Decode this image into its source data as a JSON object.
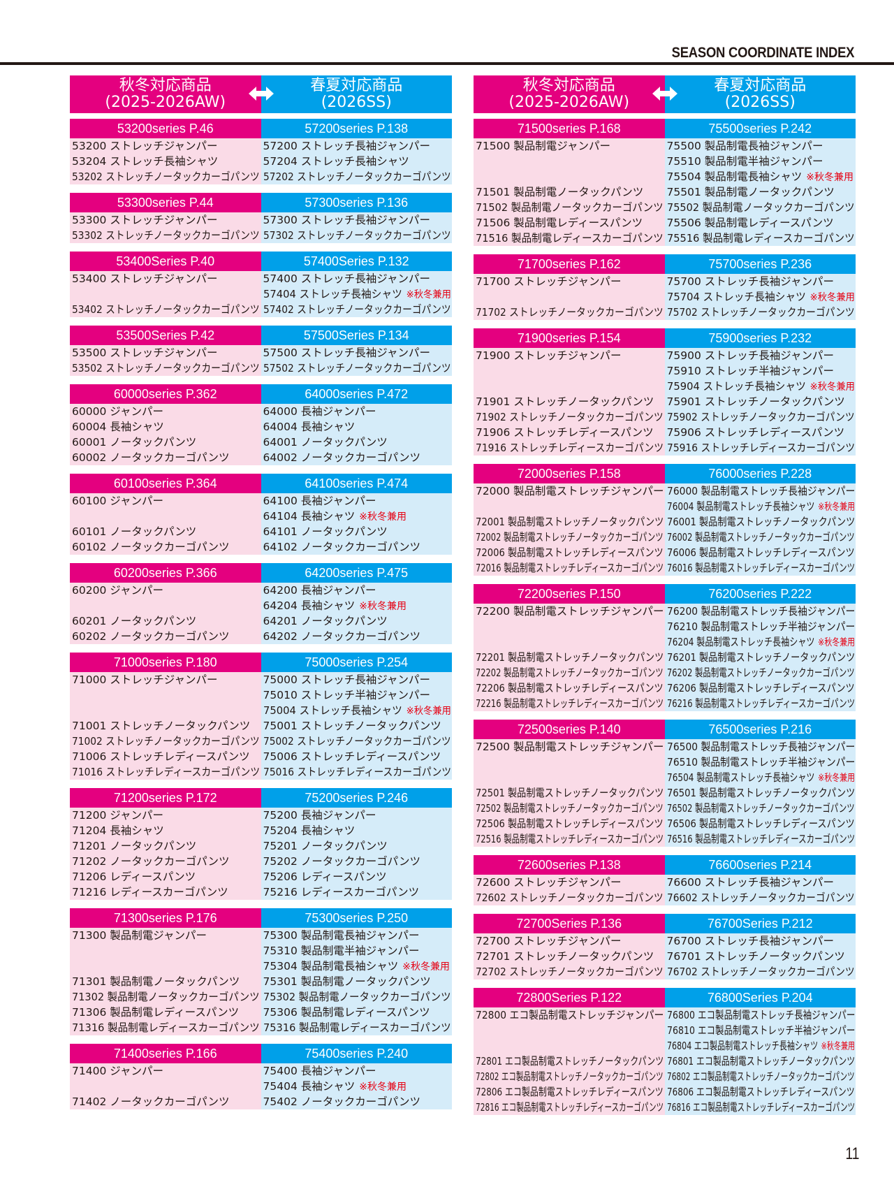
{
  "header": {
    "title": "SEASON COORDINATE INDEX",
    "page_number": "11"
  },
  "colors": {
    "autumn_winter": "#e4007f",
    "spring_summer": "#00a0e9",
    "autumn_winter_bg": "#fadbe7",
    "spring_summer_bg": "#d5ecf9",
    "note": "#e60012"
  },
  "column_heads": {
    "aw_title": "秋冬対応商品",
    "aw_sub": "(2025-2026AW)",
    "ss_title": "春夏対応商品",
    "ss_sub": "(2026SS)",
    "arrow_icon": "double-arrow"
  },
  "panels": [
    {
      "groups": [
        {
          "aw": "53200series P.46",
          "ss": "57200series P.138",
          "rows": [
            {
              "l": "53200 ストレッチジャンパー",
              "r": "57200 ストレッチ長袖ジャンパー"
            },
            {
              "l": "53204 ストレッチ長袖シャツ",
              "r": "57204 ストレッチ長袖シャツ"
            },
            {
              "l": "53202 ストレッチノータックカーゴパンツ",
              "r": "57202 ストレッチノータックカーゴパンツ"
            }
          ]
        },
        {
          "aw": "53300series P.44",
          "ss": "57300series P.136",
          "rows": [
            {
              "l": "53300 ストレッチジャンパー",
              "r": "57300 ストレッチ長袖ジャンパー"
            },
            {
              "l": "53302 ストレッチノータックカーゴパンツ",
              "r": "57302 ストレッチノータックカーゴパンツ"
            }
          ]
        },
        {
          "aw": "53400Series P.40",
          "ss": "57400Series P.132",
          "rows": [
            {
              "l": "53400 ストレッチジャンパー",
              "r": "57400 ストレッチ長袖ジャンパー"
            },
            {
              "l": "",
              "r": "57404 ストレッチ長袖シャツ",
              "note": "※秋冬兼用"
            },
            {
              "l": "53402 ストレッチノータックカーゴパンツ",
              "r": "57402 ストレッチノータックカーゴパンツ"
            }
          ]
        },
        {
          "aw": "53500Series P.42",
          "ss": "57500Series P.134",
          "rows": [
            {
              "l": "53500 ストレッチジャンパー",
              "r": "57500 ストレッチ長袖ジャンパー"
            },
            {
              "l": "53502 ストレッチノータックカーゴパンツ",
              "r": "57502 ストレッチノータックカーゴパンツ"
            }
          ]
        },
        {
          "aw": "60000series P.362",
          "ss": "64000series P.472",
          "rows": [
            {
              "l": "60000 ジャンパー",
              "r": "64000 長袖ジャンパー"
            },
            {
              "l": "60004 長袖シャツ",
              "r": "64004 長袖シャツ"
            },
            {
              "l": "60001 ノータックパンツ",
              "r": "64001 ノータックパンツ"
            },
            {
              "l": "60002 ノータックカーゴパンツ",
              "r": "64002 ノータックカーゴパンツ"
            }
          ]
        },
        {
          "aw": "60100series P.364",
          "ss": "64100series P.474",
          "rows": [
            {
              "l": "60100 ジャンパー",
              "r": "64100 長袖ジャンパー"
            },
            {
              "l": "",
              "r": "64104 長袖シャツ",
              "note": "※秋冬兼用"
            },
            {
              "l": "60101 ノータックパンツ",
              "r": "64101 ノータックパンツ"
            },
            {
              "l": "60102 ノータックカーゴパンツ",
              "r": "64102 ノータックカーゴパンツ"
            }
          ]
        },
        {
          "aw": "60200series P.366",
          "ss": "64200series P.475",
          "rows": [
            {
              "l": "60200 ジャンパー",
              "r": "64200 長袖ジャンパー"
            },
            {
              "l": "",
              "r": "64204 長袖シャツ",
              "note": "※秋冬兼用"
            },
            {
              "l": "60201 ノータックパンツ",
              "r": "64201 ノータックパンツ"
            },
            {
              "l": "60202 ノータックカーゴパンツ",
              "r": "64202 ノータックカーゴパンツ"
            }
          ]
        },
        {
          "aw": "71000series P.180",
          "ss": "75000series P.254",
          "rows": [
            {
              "l": "71000 ストレッチジャンパー",
              "r": "75000 ストレッチ長袖ジャンパー"
            },
            {
              "l": "",
              "r": "75010 ストレッチ半袖ジャンパー"
            },
            {
              "l": "",
              "r": "75004 ストレッチ長袖シャツ",
              "note": "※秋冬兼用"
            },
            {
              "l": "71001 ストレッチノータックパンツ",
              "r": "75001 ストレッチノータックパンツ"
            },
            {
              "l": "71002 ストレッチノータックカーゴパンツ",
              "r": "75002 ストレッチノータックカーゴパンツ"
            },
            {
              "l": "71006 ストレッチレディースパンツ",
              "r": "75006 ストレッチレディースパンツ"
            },
            {
              "l": "71016 ストレッチレディースカーゴパンツ",
              "r": "75016 ストレッチレディースカーゴパンツ"
            }
          ]
        },
        {
          "aw": "71200series P.172",
          "ss": "75200series P.246",
          "rows": [
            {
              "l": "71200 ジャンパー",
              "r": "75200 長袖ジャンパー"
            },
            {
              "l": "71204 長袖シャツ",
              "r": "75204 長袖シャツ"
            },
            {
              "l": "71201 ノータックパンツ",
              "r": "75201 ノータックパンツ"
            },
            {
              "l": "71202 ノータックカーゴパンツ",
              "r": "75202 ノータックカーゴパンツ"
            },
            {
              "l": "71206 レディースパンツ",
              "r": "75206 レディースパンツ"
            },
            {
              "l": "71216 レディースカーゴパンツ",
              "r": "75216 レディースカーゴパンツ"
            }
          ]
        },
        {
          "aw": "71300series P.176",
          "ss": "75300series P.250",
          "rows": [
            {
              "l": "71300 製品制電ジャンパー",
              "r": "75300 製品制電長袖ジャンパー"
            },
            {
              "l": "",
              "r": "75310 製品制電半袖ジャンパー"
            },
            {
              "l": "",
              "r": "75304 製品制電長袖シャツ",
              "note": "※秋冬兼用"
            },
            {
              "l": "71301 製品制電ノータックパンツ",
              "r": "75301 製品制電ノータックパンツ"
            },
            {
              "l": "71302 製品制電ノータックカーゴパンツ",
              "r": "75302 製品制電ノータックカーゴパンツ"
            },
            {
              "l": "71306 製品制電レディースパンツ",
              "r": "75306 製品制電レディースパンツ"
            },
            {
              "l": "71316 製品制電レディースカーゴパンツ",
              "r": "75316 製品制電レディースカーゴパンツ"
            }
          ]
        },
        {
          "aw": "71400series P.166",
          "ss": "75400series P.240",
          "rows": [
            {
              "l": "71400 ジャンパー",
              "r": "75400 長袖ジャンパー"
            },
            {
              "l": "",
              "r": "75404 長袖シャツ",
              "note": "※秋冬兼用"
            },
            {
              "l": "71402 ノータックカーゴパンツ",
              "r": "75402 ノータックカーゴパンツ"
            }
          ]
        }
      ]
    },
    {
      "groups": [
        {
          "aw": "71500series P.168",
          "ss": "75500series P.242",
          "rows": [
            {
              "l": "71500 製品制電ジャンパー",
              "r": "75500 製品制電長袖ジャンパー"
            },
            {
              "l": "",
              "r": "75510 製品制電半袖ジャンパー"
            },
            {
              "l": "",
              "r": "75504 製品制電長袖シャツ",
              "note": "※秋冬兼用"
            },
            {
              "l": "71501 製品制電ノータックパンツ",
              "r": "75501 製品制電ノータックパンツ"
            },
            {
              "l": "71502 製品制電ノータックカーゴパンツ",
              "r": "75502 製品制電ノータックカーゴパンツ"
            },
            {
              "l": "71506 製品制電レディースパンツ",
              "r": "75506 製品制電レディースパンツ"
            },
            {
              "l": "71516 製品制電レディースカーゴパンツ",
              "r": "75516 製品制電レディースカーゴパンツ"
            }
          ]
        },
        {
          "aw": "71700series P.162",
          "ss": "75700series P.236",
          "rows": [
            {
              "l": "71700 ストレッチジャンパー",
              "r": "75700 ストレッチ長袖ジャンパー"
            },
            {
              "l": "",
              "r": "75704 ストレッチ長袖シャツ",
              "note": "※秋冬兼用"
            },
            {
              "l": "71702 ストレッチノータックカーゴパンツ",
              "r": "75702 ストレッチノータックカーゴパンツ"
            }
          ]
        },
        {
          "aw": "71900series P.154",
          "ss": "75900series P.232",
          "rows": [
            {
              "l": "71900 ストレッチジャンパー",
              "r": "75900 ストレッチ長袖ジャンパー"
            },
            {
              "l": "",
              "r": "75910 ストレッチ半袖ジャンパー"
            },
            {
              "l": "",
              "r": "75904 ストレッチ長袖シャツ",
              "note": "※秋冬兼用"
            },
            {
              "l": "71901 ストレッチノータックパンツ",
              "r": "75901 ストレッチノータックパンツ"
            },
            {
              "l": "71902 ストレッチノータックカーゴパンツ",
              "r": "75902 ストレッチノータックカーゴパンツ"
            },
            {
              "l": "71906 ストレッチレディースパンツ",
              "r": "75906 ストレッチレディースパンツ"
            },
            {
              "l": "71916 ストレッチレディースカーゴパンツ",
              "r": "75916 ストレッチレディースカーゴパンツ"
            }
          ]
        },
        {
          "aw": "72000series P.158",
          "ss": "76000series P.228",
          "rows": [
            {
              "l": "72000 製品制電ストレッチジャンパー",
              "r": "76000 製品制電ストレッチ長袖ジャンパー"
            },
            {
              "l": "",
              "r": "76004 製品制電ストレッチ長袖シャツ",
              "note": "※秋冬兼用"
            },
            {
              "l": "72001 製品制電ストレッチノータックパンツ",
              "r": "76001 製品制電ストレッチノータックパンツ"
            },
            {
              "l": "72002 製品制電ストレッチノータックカーゴパンツ",
              "r": "76002 製品制電ストレッチノータックカーゴパンツ"
            },
            {
              "l": "72006 製品制電ストレッチレディースパンツ",
              "r": "76006 製品制電ストレッチレディースパンツ"
            },
            {
              "l": "72016 製品制電ストレッチレディースカーゴパンツ",
              "r": "76016 製品制電ストレッチレディースカーゴパンツ"
            }
          ]
        },
        {
          "aw": "72200series P.150",
          "ss": "76200series P.222",
          "rows": [
            {
              "l": "72200 製品制電ストレッチジャンパー",
              "r": "76200 製品制電ストレッチ長袖ジャンパー"
            },
            {
              "l": "",
              "r": "76210 製品制電ストレッチ半袖ジャンパー"
            },
            {
              "l": "",
              "r": "76204 製品制電ストレッチ長袖シャツ",
              "note": "※秋冬兼用"
            },
            {
              "l": "72201 製品制電ストレッチノータックパンツ",
              "r": "76201 製品制電ストレッチノータックパンツ"
            },
            {
              "l": "72202 製品制電ストレッチノータックカーゴパンツ",
              "r": "76202 製品制電ストレッチノータックカーゴパンツ"
            },
            {
              "l": "72206 製品制電ストレッチレディースパンツ",
              "r": "76206 製品制電ストレッチレディースパンツ"
            },
            {
              "l": "72216 製品制電ストレッチレディースカーゴパンツ",
              "r": "76216 製品制電ストレッチレディースカーゴパンツ"
            }
          ]
        },
        {
          "aw": "72500series P.140",
          "ss": "76500series P.216",
          "rows": [
            {
              "l": "72500 製品制電ストレッチジャンパー",
              "r": "76500 製品制電ストレッチ長袖ジャンパー"
            },
            {
              "l": "",
              "r": "76510 製品制電ストレッチ半袖ジャンパー"
            },
            {
              "l": "",
              "r": "76504 製品制電ストレッチ長袖シャツ",
              "note": "※秋冬兼用"
            },
            {
              "l": "72501 製品制電ストレッチノータックパンツ",
              "r": "76501 製品制電ストレッチノータックパンツ"
            },
            {
              "l": "72502 製品制電ストレッチノータックカーゴパンツ",
              "r": "76502 製品制電ストレッチノータックカーゴパンツ"
            },
            {
              "l": "72506 製品制電ストレッチレディースパンツ",
              "r": "76506 製品制電ストレッチレディースパンツ"
            },
            {
              "l": "72516 製品制電ストレッチレディースカーゴパンツ",
              "r": "76516 製品制電ストレッチレディースカーゴパンツ"
            }
          ]
        },
        {
          "aw": "72600series P.138",
          "ss": "76600series P.214",
          "rows": [
            {
              "l": "72600 ストレッチジャンパー",
              "r": "76600 ストレッチ長袖ジャンパー"
            },
            {
              "l": "72602 ストレッチノータックカーゴパンツ",
              "r": "76602 ストレッチノータックカーゴパンツ"
            }
          ]
        },
        {
          "aw": "72700Series P.136",
          "ss": "76700Series P.212",
          "rows": [
            {
              "l": "72700 ストレッチジャンパー",
              "r": "76700 ストレッチ長袖ジャンパー"
            },
            {
              "l": "72701 ストレッチノータックパンツ",
              "r": "76701 ストレッチノータックパンツ"
            },
            {
              "l": "72702 ストレッチノータックカーゴパンツ",
              "r": "76702 ストレッチノータックカーゴパンツ"
            }
          ]
        },
        {
          "aw": "72800Series P.122",
          "ss": "76800Series P.204",
          "rows": [
            {
              "l": "72800 エコ製品制電ストレッチジャンパー",
              "r": "76800 エコ製品制電ストレッチ長袖ジャンパー"
            },
            {
              "l": "",
              "r": "76810 エコ製品制電ストレッチ半袖ジャンパー"
            },
            {
              "l": "",
              "r": "76804 エコ製品制電ストレッチ長袖シャツ",
              "note": "※秋冬兼用"
            },
            {
              "l": "72801 エコ製品制電ストレッチノータックパンツ",
              "r": "76801 エコ製品制電ストレッチノータックパンツ"
            },
            {
              "l": "72802 エコ製品制電ストレッチノータックカーゴパンツ",
              "r": "76802 エコ製品制電ストレッチノータックカーゴパンツ"
            },
            {
              "l": "72806 エコ製品制電ストレッチレディースパンツ",
              "r": "76806 エコ製品制電ストレッチレディースパンツ"
            },
            {
              "l": "72816 エコ製品制電ストレッチレディースカーゴパンツ",
              "r": "76816 エコ製品制電ストレッチレディースカーゴパンツ"
            }
          ]
        }
      ]
    }
  ]
}
